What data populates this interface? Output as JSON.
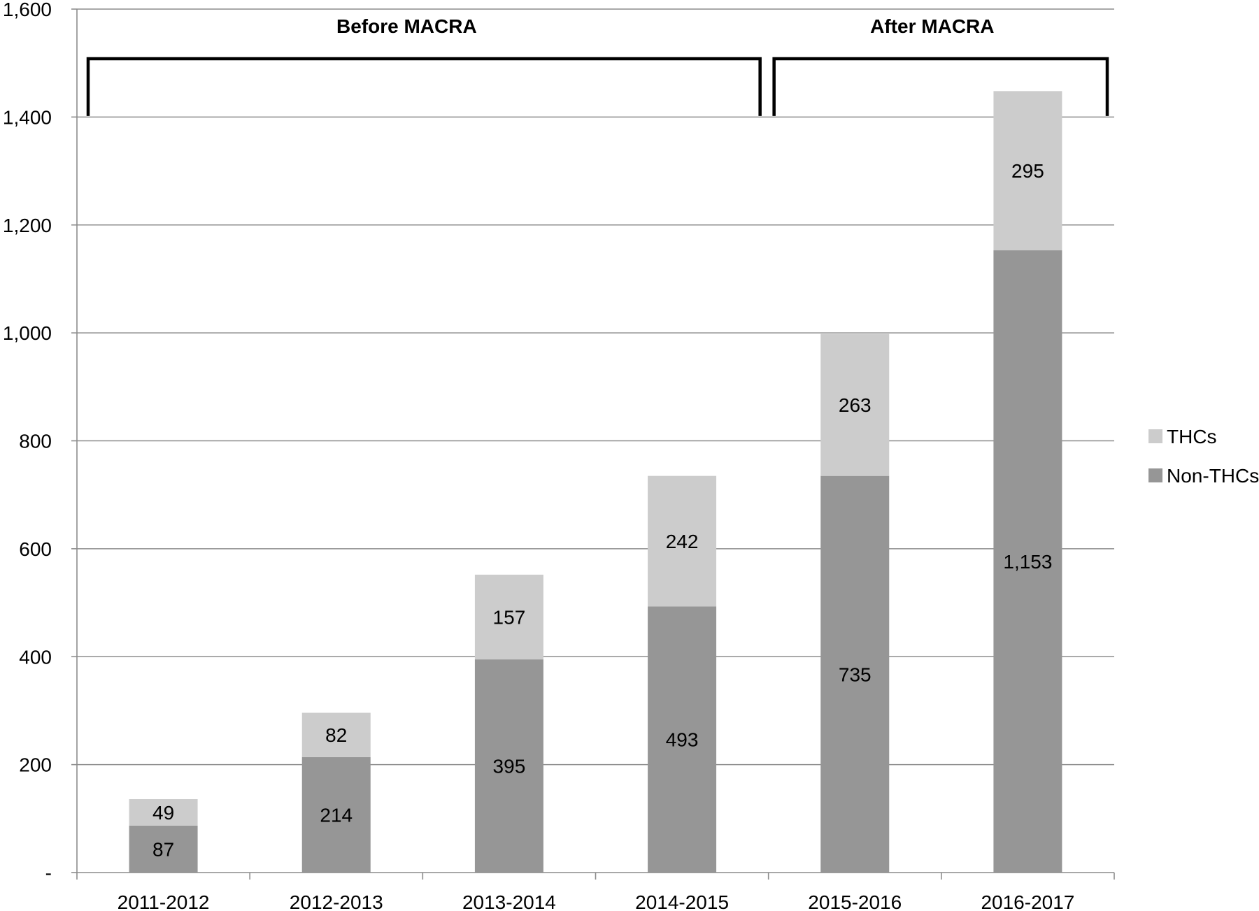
{
  "chart_data": {
    "type": "bar",
    "stacked": true,
    "categories": [
      "2011-2012",
      "2012-2013",
      "2013-2014",
      "2014-2015",
      "2015-2016",
      "2016-2017"
    ],
    "series": [
      {
        "name": "Non-THCs",
        "values": [
          87,
          214,
          395,
          493,
          735,
          1153
        ],
        "labels": [
          "87",
          "214",
          "395",
          "493",
          "735",
          "1,153"
        ],
        "color": "#969696"
      },
      {
        "name": "THCs",
        "values": [
          49,
          82,
          157,
          242,
          263,
          295
        ],
        "labels": [
          "49",
          "82",
          "157",
          "242",
          "263",
          "295"
        ],
        "color": "#cccccc"
      }
    ],
    "ylim": [
      0,
      1600
    ],
    "yticks": [
      {
        "value": 0,
        "label": "-"
      },
      {
        "value": 200,
        "label": "200"
      },
      {
        "value": 400,
        "label": "400"
      },
      {
        "value": 600,
        "label": "600"
      },
      {
        "value": 800,
        "label": "800"
      },
      {
        "value": 1000,
        "label": "1,000"
      },
      {
        "value": 1200,
        "label": "1,200"
      },
      {
        "value": 1400,
        "label": "1,400"
      },
      {
        "value": 1600,
        "label": "1,600"
      }
    ],
    "grid": true,
    "legend_position": "right",
    "periods": [
      {
        "label": "Before MACRA",
        "categories": [
          "2011-2012",
          "2012-2013",
          "2013-2014",
          "2014-2015"
        ]
      },
      {
        "label": "After MACRA",
        "categories": [
          "2015-2016",
          "2016-2017"
        ]
      }
    ],
    "title": "",
    "xlabel": "",
    "ylabel": ""
  }
}
